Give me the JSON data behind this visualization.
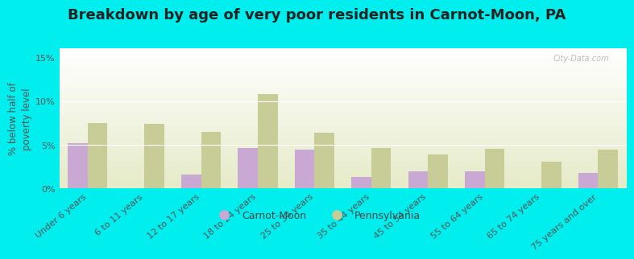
{
  "title": "Breakdown by age of very poor residents in Carnot-Moon, PA",
  "ylabel": "% below half of\npoverty level",
  "categories": [
    "Under 6 years",
    "6 to 11 years",
    "12 to 17 years",
    "18 to 24 years",
    "25 to 34 years",
    "35 to 44 years",
    "45 to 54 years",
    "55 to 64 years",
    "65 to 74 years",
    "75 years and over"
  ],
  "carnot_moon": [
    5.2,
    0.0,
    1.6,
    4.6,
    4.4,
    1.3,
    2.0,
    2.0,
    0.0,
    1.8
  ],
  "pennsylvania": [
    7.5,
    7.4,
    6.5,
    10.8,
    6.4,
    4.6,
    3.9,
    4.5,
    3.1,
    4.4
  ],
  "carnot_color": "#c9a8d4",
  "penn_color": "#c8cc96",
  "background_color": "#00eeee",
  "ylim": [
    0,
    16
  ],
  "yticks": [
    0,
    5,
    10,
    15
  ],
  "ytick_labels": [
    "0%",
    "5%",
    "10%",
    "15%"
  ],
  "legend_carnot": "Carnot-Moon",
  "legend_penn": "Pennsylvania",
  "bar_width": 0.35,
  "title_fontsize": 13,
  "axis_label_fontsize": 8.5,
  "tick_fontsize": 8,
  "legend_fontsize": 9
}
